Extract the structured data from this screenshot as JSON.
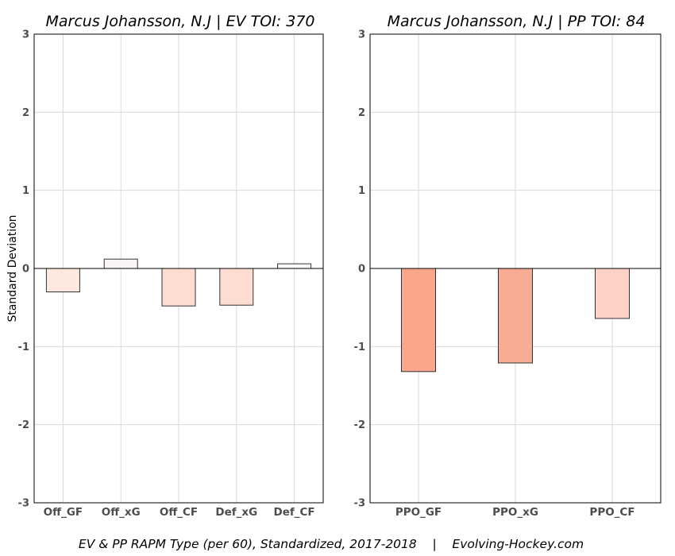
{
  "chart_data": [
    {
      "type": "bar",
      "title": "Marcus Johansson, N.J  |  EV TOI: 370",
      "ylabel": "Standard Deviation",
      "ylim": [
        -3,
        3
      ],
      "yticks": [
        "3",
        "2",
        "1",
        "0",
        "-1",
        "-2",
        "-3"
      ],
      "grid": true,
      "categories": [
        "Off_GF",
        "Off_xG",
        "Off_CF",
        "Def_xG",
        "Def_CF"
      ],
      "values": [
        -0.3,
        0.12,
        -0.48,
        -0.47,
        0.06
      ],
      "colors": [
        "#fee9e1",
        "#fbf4f4",
        "#fedcd2",
        "#fedcd2",
        "#fdf8f8"
      ]
    },
    {
      "type": "bar",
      "title": "Marcus Johansson, N.J  |  PP TOI: 84",
      "ylabel": "",
      "ylim": [
        -3,
        3
      ],
      "yticks": [
        "3",
        "2",
        "1",
        "0",
        "-1",
        "-2",
        "-3"
      ],
      "grid": true,
      "categories": [
        "PPO_GF",
        "PPO_xG",
        "PPO_CF"
      ],
      "values": [
        -1.32,
        -1.21,
        -0.64
      ],
      "colors": [
        "#f9a68b",
        "#f9ac94",
        "#fdd1c5"
      ]
    }
  ],
  "caption": "EV & PP RAPM Type (per 60), Standardized, 2017-2018    |    Evolving-Hockey.com"
}
